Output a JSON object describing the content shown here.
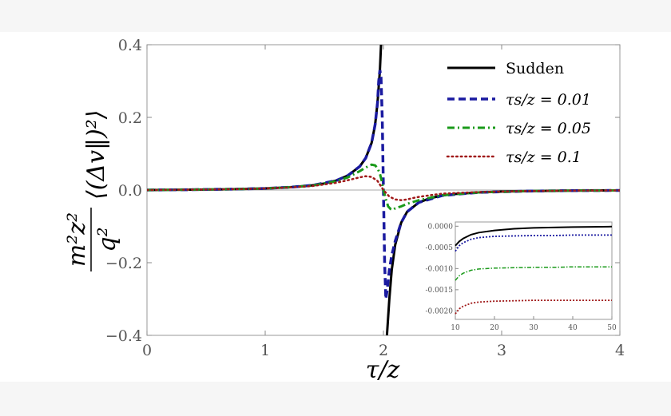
{
  "chart_data": [
    {
      "type": "line",
      "xlabel": "τ/z",
      "ylabel_parts": {
        "num": "m²z²",
        "den": "q²",
        "rest": "⟨(Δv‖)²⟩"
      },
      "xlim": [
        0,
        4
      ],
      "ylim": [
        -0.4,
        0.4
      ],
      "x_ticks": [
        0,
        1,
        2,
        3,
        4
      ],
      "x_tick_labels": [
        "0",
        "1",
        "2",
        "3",
        "4"
      ],
      "y_ticks": [
        0.4,
        0.2,
        0.0,
        -0.2,
        -0.4
      ],
      "y_tick_labels": [
        "0.4",
        "0.2",
        "0.0",
        "−0.2",
        "−0.4"
      ],
      "zero_line": true,
      "grid": false,
      "legend_position": "top-right",
      "series": [
        {
          "name": "Sudden",
          "color": "#000000",
          "dash": "solid",
          "x": [
            0.0,
            0.2,
            0.4,
            0.6,
            0.8,
            1.0,
            1.2,
            1.4,
            1.5,
            1.6,
            1.7,
            1.8,
            1.85,
            1.9,
            1.93,
            1.95,
            1.97,
            1.98,
            1.99
          ],
          "y": [
            0.0,
            0.0005,
            0.001,
            0.0017,
            0.0028,
            0.0045,
            0.0075,
            0.013,
            0.018,
            0.026,
            0.04,
            0.065,
            0.088,
            0.13,
            0.18,
            0.24,
            0.33,
            0.4,
            0.4
          ],
          "x2": [
            2.02,
            2.03,
            2.05,
            2.07,
            2.1,
            2.15,
            2.2,
            2.3,
            2.4,
            2.5,
            2.6,
            2.8,
            3.0,
            3.2,
            3.4,
            3.6,
            3.8,
            4.0
          ],
          "y2": [
            -0.4,
            -0.4,
            -0.3,
            -0.22,
            -0.15,
            -0.09,
            -0.06,
            -0.034,
            -0.022,
            -0.015,
            -0.011,
            -0.0065,
            -0.0042,
            -0.003,
            -0.0021,
            -0.0016,
            -0.0012,
            -0.001
          ]
        },
        {
          "name": "τs/z = 0.01",
          "color": "#1a1aa0",
          "dash": "dashed",
          "x": [
            0.0,
            0.4,
            0.8,
            1.0,
            1.2,
            1.4,
            1.6,
            1.7,
            1.8,
            1.85,
            1.9,
            1.93,
            1.95,
            1.96,
            1.97,
            1.98,
            1.99,
            2.0,
            2.01,
            2.02,
            2.03,
            2.04,
            2.05,
            2.07,
            2.1,
            2.15,
            2.2,
            2.3,
            2.5,
            2.8,
            3.2,
            3.6,
            4.0
          ],
          "y": [
            0.0,
            0.001,
            0.0028,
            0.0045,
            0.0075,
            0.013,
            0.026,
            0.04,
            0.065,
            0.088,
            0.13,
            0.18,
            0.24,
            0.3,
            0.33,
            0.31,
            0.2,
            0.0,
            -0.2,
            -0.3,
            -0.28,
            -0.25,
            -0.22,
            -0.18,
            -0.14,
            -0.09,
            -0.06,
            -0.034,
            -0.015,
            -0.0065,
            -0.003,
            -0.0016,
            -0.001
          ]
        },
        {
          "name": "τs/z = 0.05",
          "color": "#1a9a1a",
          "dash": "dashdot",
          "x": [
            0.0,
            0.4,
            0.8,
            1.0,
            1.2,
            1.4,
            1.6,
            1.7,
            1.8,
            1.85,
            1.9,
            1.93,
            1.95,
            1.97,
            1.99,
            2.0,
            2.02,
            2.04,
            2.06,
            2.08,
            2.1,
            2.15,
            2.2,
            2.3,
            2.5,
            2.8,
            3.2,
            3.6,
            4.0
          ],
          "y": [
            0.0,
            0.001,
            0.0028,
            0.0045,
            0.0075,
            0.012,
            0.024,
            0.035,
            0.052,
            0.062,
            0.07,
            0.068,
            0.06,
            0.045,
            0.02,
            0.0,
            -0.025,
            -0.045,
            -0.052,
            -0.055,
            -0.05,
            -0.045,
            -0.038,
            -0.028,
            -0.014,
            -0.0065,
            -0.003,
            -0.0016,
            -0.001
          ]
        },
        {
          "name": "τs/z = 0.1",
          "color": "#a01a1a",
          "dash": "dotted",
          "x": [
            0.0,
            0.4,
            0.8,
            1.0,
            1.2,
            1.4,
            1.6,
            1.7,
            1.8,
            1.85,
            1.9,
            1.95,
            2.0,
            2.05,
            2.1,
            2.15,
            2.2,
            2.25,
            2.3,
            2.4,
            2.5,
            2.8,
            3.2,
            3.6,
            4.0
          ],
          "y": [
            0.0,
            0.001,
            0.0027,
            0.0043,
            0.007,
            0.011,
            0.02,
            0.027,
            0.035,
            0.038,
            0.036,
            0.025,
            0.0,
            -0.018,
            -0.026,
            -0.028,
            -0.026,
            -0.022,
            -0.019,
            -0.014,
            -0.01,
            -0.0055,
            -0.0028,
            -0.0015,
            -0.001
          ]
        }
      ]
    },
    {
      "type": "line",
      "role": "inset",
      "xlim": [
        10,
        50
      ],
      "ylim": [
        -0.0022,
        0.0001
      ],
      "x_ticks": [
        10,
        20,
        30,
        40,
        50
      ],
      "x_tick_labels": [
        "10",
        "20",
        "30",
        "40",
        "50"
      ],
      "y_ticks": [
        0.0,
        -0.0005,
        -0.001,
        -0.0015,
        -0.002
      ],
      "y_tick_labels": [
        "0.0000",
        "-0.0005",
        "-0.0010",
        "-0.0015",
        "-0.0020"
      ],
      "series": [
        {
          "color": "#000000",
          "dash": "solid",
          "x": [
            10,
            11,
            12,
            14,
            16,
            20,
            25,
            30,
            35,
            40,
            45,
            50
          ],
          "y": [
            -0.00046,
            -0.00036,
            -0.00029,
            -0.0002,
            -0.00015,
            -0.0001,
            -6e-05,
            -4e-05,
            -3e-05,
            -2e-05,
            -1.5e-05,
            -1e-05
          ]
        },
        {
          "color": "#1a1aa0",
          "dash": "dotted",
          "x": [
            10,
            11,
            12,
            14,
            16,
            20,
            25,
            30,
            35,
            40,
            45,
            50
          ],
          "y": [
            -0.00059,
            -0.00046,
            -0.00039,
            -0.00031,
            -0.00027,
            -0.00024,
            -0.00023,
            -0.00022,
            -0.00022,
            -0.00021,
            -0.00021,
            -0.00021
          ]
        },
        {
          "color": "#1a9a1a",
          "dash": "dashdot",
          "x": [
            10,
            11,
            12,
            14,
            16,
            20,
            25,
            30,
            35,
            40,
            45,
            50
          ],
          "y": [
            -0.00128,
            -0.00117,
            -0.00111,
            -0.00104,
            -0.00101,
            -0.00099,
            -0.00098,
            -0.00097,
            -0.00097,
            -0.00096,
            -0.00096,
            -0.00096
          ]
        },
        {
          "color": "#a01a1a",
          "dash": "dotted",
          "x": [
            10,
            11,
            12,
            14,
            16,
            20,
            25,
            30,
            35,
            40,
            45,
            50
          ],
          "y": [
            -0.00207,
            -0.00195,
            -0.00189,
            -0.00182,
            -0.00179,
            -0.00177,
            -0.00176,
            -0.00175,
            -0.00175,
            -0.00175,
            -0.00175,
            -0.00175
          ]
        }
      ]
    }
  ]
}
